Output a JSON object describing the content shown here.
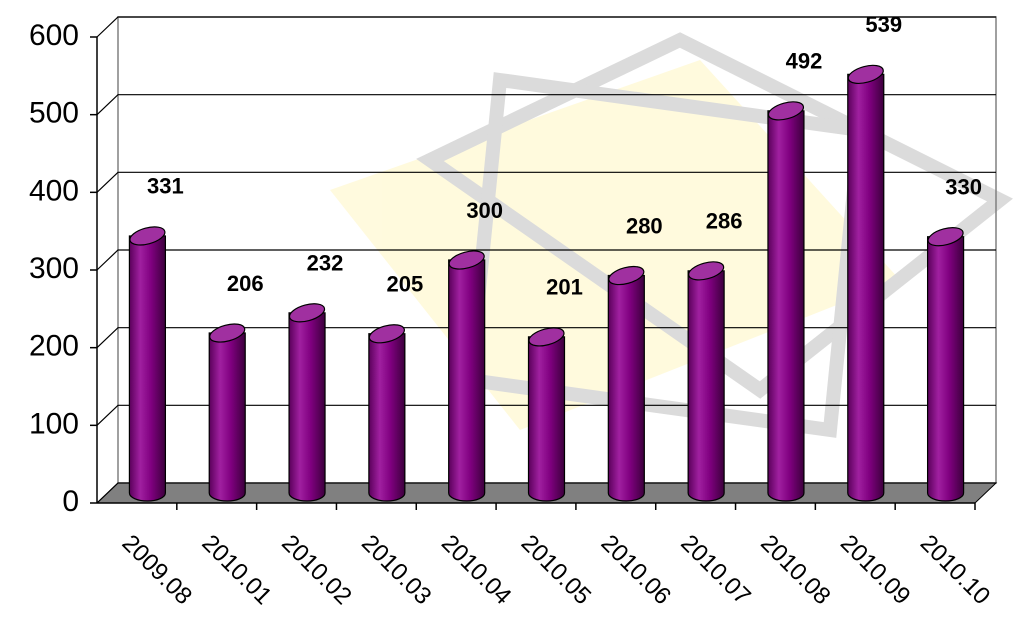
{
  "chart_data": {
    "type": "bar",
    "categories": [
      "2009.08",
      "2010.01",
      "2010.02",
      "2010.03",
      "2010.04",
      "2010.05",
      "2010.06",
      "2010.07",
      "2010.08",
      "2010.09",
      "2010.10"
    ],
    "values": [
      331,
      206,
      232,
      205,
      300,
      201,
      280,
      286,
      492,
      539,
      330
    ],
    "color": "#800080",
    "ylim": [
      0,
      600
    ],
    "yticks": [
      0,
      100,
      200,
      300,
      400,
      500,
      600
    ],
    "grid": true
  }
}
